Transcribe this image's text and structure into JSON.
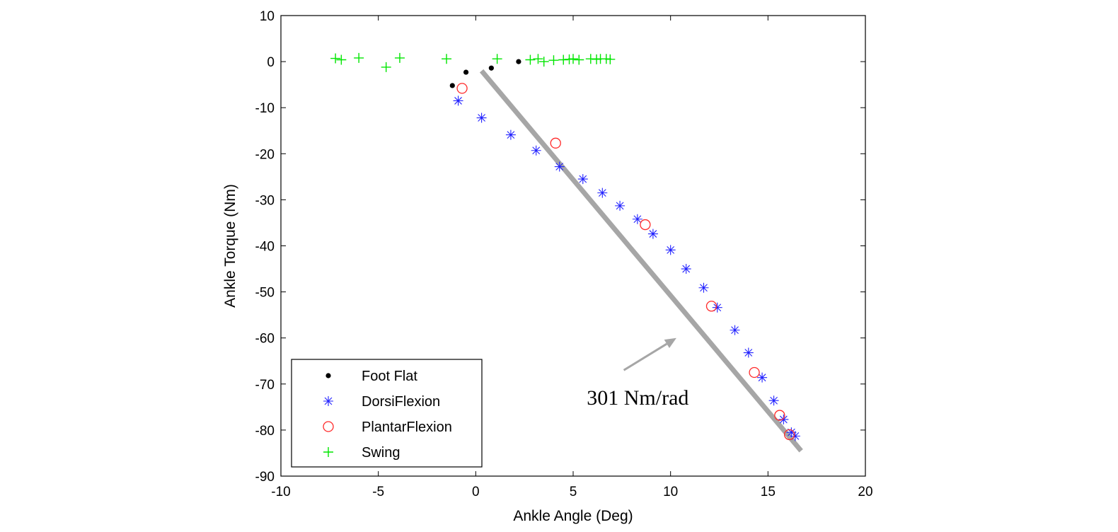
{
  "chart_data": {
    "type": "scatter",
    "title": "",
    "xlabel": "Ankle Angle (Deg)",
    "ylabel": "Ankle Torque (Nm)",
    "xlim": [
      -10,
      20
    ],
    "ylim": [
      -90,
      10
    ],
    "xticks": [
      -10,
      -5,
      0,
      5,
      10,
      15,
      20
    ],
    "yticks": [
      10,
      0,
      -10,
      -20,
      -30,
      -40,
      -50,
      -60,
      -70,
      -80,
      -90
    ],
    "grid": false,
    "legend_position": "bottom-left",
    "series": [
      {
        "name": "Foot Flat",
        "marker": "dot",
        "color": "#000000",
        "points": [
          [
            -1.2,
            -5.2
          ],
          [
            -0.5,
            -2.3
          ],
          [
            0.8,
            -1.4
          ],
          [
            2.2,
            0.0
          ]
        ]
      },
      {
        "name": "DorsiFlexion",
        "marker": "asterisk",
        "color": "#2222ff",
        "points": [
          [
            -0.9,
            -8.5
          ],
          [
            0.3,
            -12.2
          ],
          [
            1.8,
            -15.9
          ],
          [
            3.1,
            -19.3
          ],
          [
            4.3,
            -22.8
          ],
          [
            5.5,
            -25.5
          ],
          [
            6.5,
            -28.5
          ],
          [
            7.4,
            -31.3
          ],
          [
            8.3,
            -34.2
          ],
          [
            9.1,
            -37.4
          ],
          [
            10.0,
            -40.9
          ],
          [
            10.8,
            -45.0
          ],
          [
            11.7,
            -49.1
          ],
          [
            12.4,
            -53.4
          ],
          [
            13.3,
            -58.3
          ],
          [
            14.0,
            -63.2
          ],
          [
            14.7,
            -68.6
          ],
          [
            15.3,
            -73.6
          ],
          [
            15.8,
            -77.7
          ],
          [
            16.2,
            -80.5
          ],
          [
            16.4,
            -81.3
          ]
        ]
      },
      {
        "name": "PlantarFlexion",
        "marker": "circle",
        "color": "#ff2a2a",
        "points": [
          [
            -0.7,
            -5.8
          ],
          [
            4.1,
            -17.7
          ],
          [
            8.7,
            -35.4
          ],
          [
            12.1,
            -53.1
          ],
          [
            14.3,
            -67.5
          ],
          [
            15.6,
            -76.8
          ],
          [
            16.1,
            -81.0
          ]
        ]
      },
      {
        "name": "Swing",
        "marker": "plus",
        "color": "#00e600",
        "points": [
          [
            -7.2,
            0.7
          ],
          [
            -6.9,
            0.4
          ],
          [
            -6.0,
            0.8
          ],
          [
            -4.6,
            -1.2
          ],
          [
            -3.9,
            0.8
          ],
          [
            -1.5,
            0.6
          ],
          [
            1.1,
            0.6
          ],
          [
            2.8,
            0.4
          ],
          [
            3.2,
            0.6
          ],
          [
            3.5,
            0.0
          ],
          [
            4.0,
            0.3
          ],
          [
            4.5,
            0.4
          ],
          [
            4.8,
            0.5
          ],
          [
            5.0,
            0.6
          ],
          [
            5.3,
            0.4
          ],
          [
            5.9,
            0.6
          ],
          [
            6.2,
            0.5
          ],
          [
            6.4,
            0.6
          ],
          [
            6.7,
            0.6
          ],
          [
            6.9,
            0.5
          ]
        ]
      }
    ],
    "fit_line": {
      "from": [
        0.3,
        -2.0
      ],
      "to": [
        16.7,
        -84.5
      ],
      "color": "#a6a6a6"
    },
    "annotations": [
      {
        "text": "301 Nm/rad",
        "x": 5.7,
        "y": -74.5,
        "arrow_from": [
          7.6,
          -67.0
        ],
        "arrow_to": [
          10.3,
          -60.0
        ]
      }
    ]
  }
}
